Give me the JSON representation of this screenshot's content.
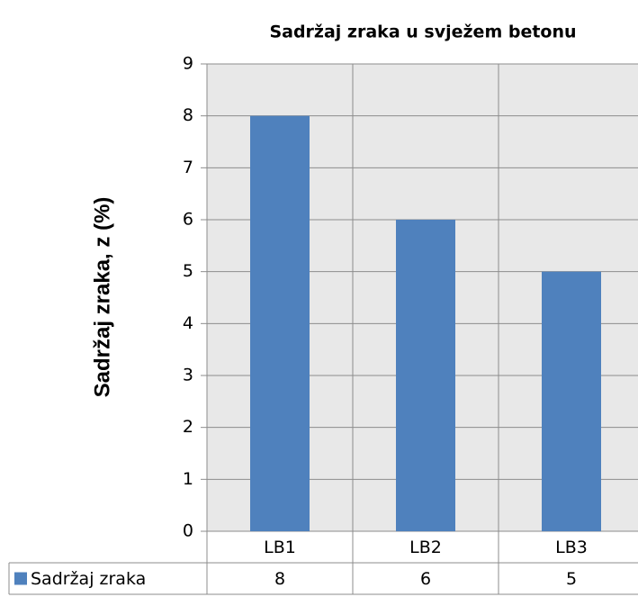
{
  "chart_data": {
    "type": "bar",
    "title": "Sadržaj zraka u svježem betonu",
    "y_label": "Sadržaj zraka, z (%)",
    "categories": [
      "LB1",
      "LB2",
      "LB3"
    ],
    "series": [
      {
        "name": "Sadržaj zraka",
        "color": "#4f81bd",
        "values": [
          8,
          6,
          5
        ]
      }
    ],
    "ylim": [
      0,
      9
    ],
    "yticks": [
      0,
      1,
      2,
      3,
      4,
      5,
      6,
      7,
      8,
      9
    ],
    "grid": true,
    "data_table": true
  }
}
